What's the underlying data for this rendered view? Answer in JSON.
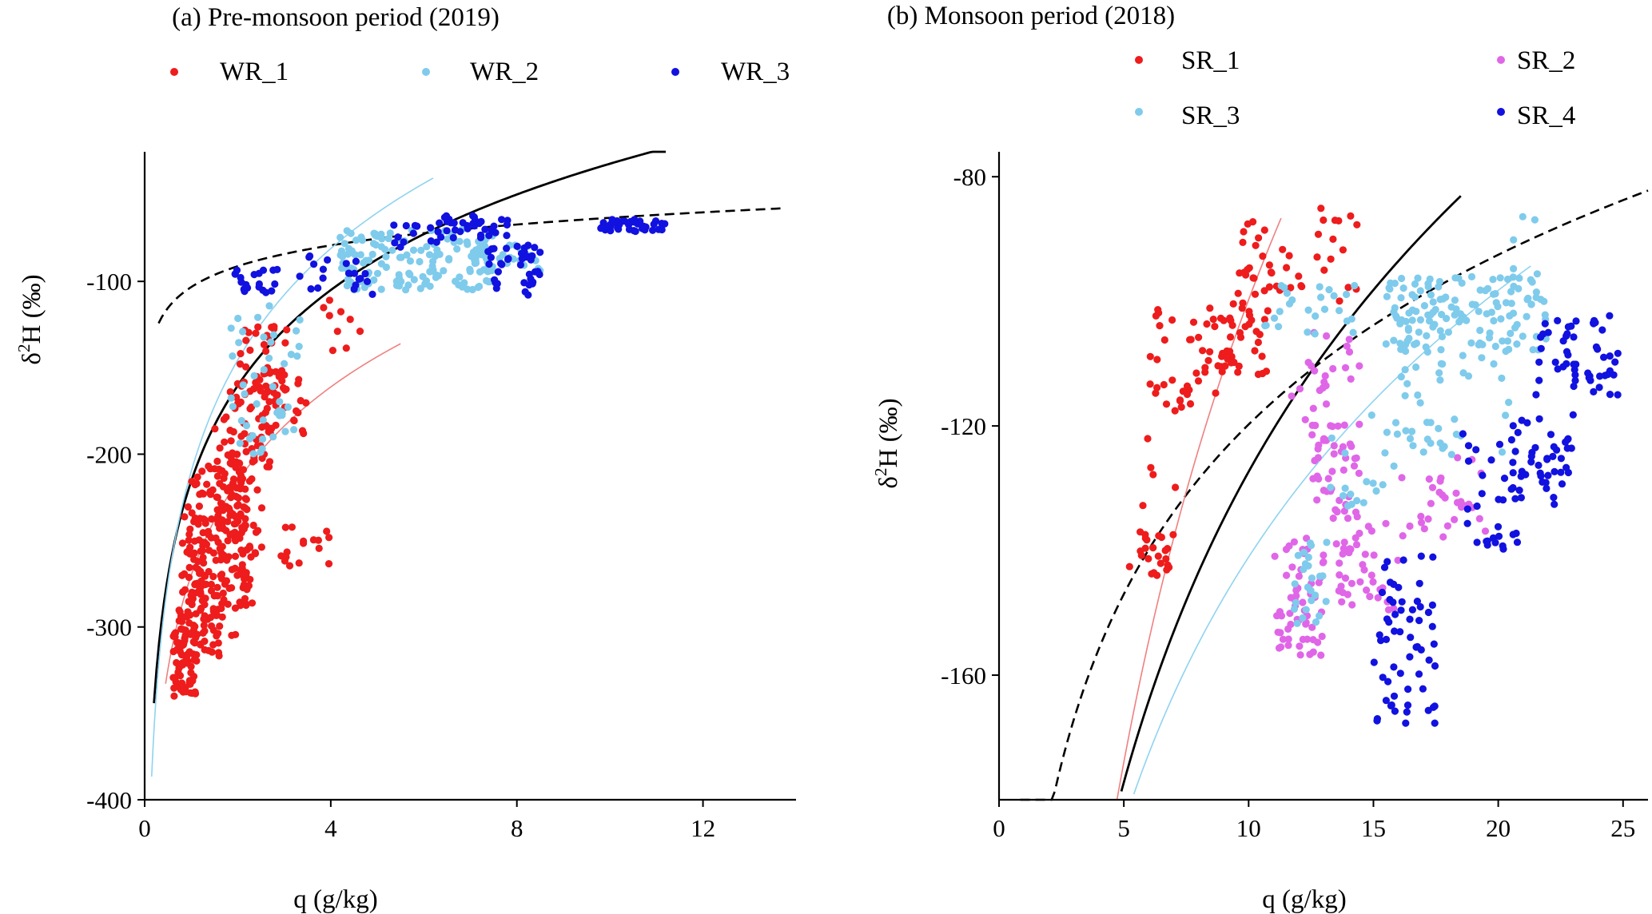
{
  "chart_data": [
    {
      "type": "scatter",
      "title": "(a) Pre-monsoon period (2019)",
      "xlabel": "q (g/kg)",
      "ylabel_prefix": "δ",
      "ylabel_sup": "2",
      "ylabel_suffix": "H (‰)",
      "xlim": [
        0,
        14
      ],
      "ylim": [
        -400,
        -25
      ],
      "xticks": [
        0,
        4,
        8,
        12
      ],
      "xtick_labels": [
        "0",
        "4",
        "8",
        "12"
      ],
      "yticks": [
        -400,
        -300,
        -200,
        -100
      ],
      "ytick_labels": [
        "-400",
        "-300",
        "-200",
        "-100"
      ],
      "grid": false,
      "legend": "top",
      "series": [
        {
          "name": "WR_1",
          "color": "#ee1c1c",
          "clusters": [
            {
              "x": [
                0.6,
                1.1
              ],
              "y": [
                -340,
                -290
              ],
              "n": 70,
              "seed": 11
            },
            {
              "x": [
                0.8,
                1.7
              ],
              "y": [
                -320,
                -230
              ],
              "n": 110,
              "seed": 12
            },
            {
              "x": [
                1.0,
                2.2
              ],
              "y": [
                -290,
                -205
              ],
              "n": 110,
              "seed": 13
            },
            {
              "x": [
                1.4,
                2.6
              ],
              "y": [
                -260,
                -185
              ],
              "n": 70,
              "seed": 14
            },
            {
              "x": [
                1.7,
                2.7
              ],
              "y": [
                -215,
                -150
              ],
              "n": 45,
              "seed": 15
            },
            {
              "x": [
                2.0,
                3.1
              ],
              "y": [
                -180,
                -125
              ],
              "n": 40,
              "seed": 16
            },
            {
              "x": [
                2.4,
                3.6
              ],
              "y": [
                -190,
                -145
              ],
              "n": 30,
              "seed": 17
            },
            {
              "x": [
                2.9,
                4.0
              ],
              "y": [
                -265,
                -240
              ],
              "n": 16,
              "seed": 18
            },
            {
              "x": [
                3.8,
                4.8
              ],
              "y": [
                -140,
                -110
              ],
              "n": 9,
              "seed": 19
            },
            {
              "x": [
                1.7,
                2.4
              ],
              "y": [
                -310,
                -255
              ],
              "n": 15,
              "seed": 20
            }
          ]
        },
        {
          "name": "WR_2",
          "color": "#7fcbec",
          "clusters": [
            {
              "x": [
                1.8,
                3.4
              ],
              "y": [
                -200,
                -110
              ],
              "n": 45,
              "seed": 21
            },
            {
              "x": [
                4.2,
                7.5
              ],
              "y": [
                -105,
                -70
              ],
              "n": 140,
              "seed": 22
            },
            {
              "x": [
                7.0,
                8.5
              ],
              "y": [
                -95,
                -78
              ],
              "n": 35,
              "seed": 23
            }
          ]
        },
        {
          "name": "WR_3",
          "color": "#1111e0",
          "clusters": [
            {
              "x": [
                1.9,
                2.9
              ],
              "y": [
                -107,
                -93
              ],
              "n": 20,
              "seed": 31
            },
            {
              "x": [
                3.3,
                5.0
              ],
              "y": [
                -108,
                -85
              ],
              "n": 20,
              "seed": 32
            },
            {
              "x": [
                5.0,
                6.5
              ],
              "y": [
                -82,
                -66
              ],
              "n": 12,
              "seed": 33
            },
            {
              "x": [
                6.3,
                7.8
              ],
              "y": [
                -75,
                -62
              ],
              "n": 35,
              "seed": 34
            },
            {
              "x": [
                7.3,
                8.5
              ],
              "y": [
                -108,
                -78
              ],
              "n": 40,
              "seed": 35
            },
            {
              "x": [
                9.8,
                11.4
              ],
              "y": [
                -71,
                -64
              ],
              "n": 40,
              "seed": 36
            }
          ]
        }
      ],
      "curves": [
        {
          "style": "dashed",
          "color": "#000000",
          "a": -103.29,
          "b": 17.41,
          "x": [
            0.3,
            13.7
          ]
        },
        {
          "style": "solid",
          "color": "#000000",
          "a": -215.67,
          "b": 79.81,
          "x": [
            0.2,
            11.2
          ]
        },
        {
          "style": "thin",
          "color": "#8fd3f0",
          "a": -210.03,
          "b": 93.07,
          "x": [
            0.15,
            6.2
          ]
        },
        {
          "style": "thin",
          "color": "#f08080",
          "a": -270.07,
          "b": 78.6,
          "x": [
            0.45,
            5.5
          ]
        }
      ]
    },
    {
      "type": "scatter",
      "title": "(b) Monsoon period (2018)",
      "xlabel": "q (g/kg)",
      "ylabel_prefix": "δ",
      "ylabel_sup": "2",
      "ylabel_suffix": "H (‰)",
      "xlim": [
        0,
        26
      ],
      "ylim": [
        -180,
        -76
      ],
      "xticks": [
        0,
        5,
        10,
        15,
        20,
        25
      ],
      "xtick_labels": [
        "0",
        "5",
        "10",
        "15",
        "20",
        "25"
      ],
      "yticks": [
        -160,
        -120,
        -80
      ],
      "ytick_labels": [
        "-160",
        "-120",
        "-80"
      ],
      "grid": false,
      "legend": "top",
      "series": [
        {
          "name": "SR_1",
          "color": "#ee1c1c",
          "clusters": [
            {
              "x": [
                5.2,
                7.0
              ],
              "y": [
                -144,
                -137
              ],
              "n": 25,
              "seed": 41
            },
            {
              "x": [
                6.0,
                8.8
              ],
              "y": [
                -118,
                -101
              ],
              "n": 40,
              "seed": 42
            },
            {
              "x": [
                8.8,
                10.8
              ],
              "y": [
                -112,
                -100
              ],
              "n": 40,
              "seed": 43
            },
            {
              "x": [
                9.5,
                11.0
              ],
              "y": [
                -99,
                -87
              ],
              "n": 22,
              "seed": 44
            },
            {
              "x": [
                10.5,
                14.5
              ],
              "y": [
                -100,
                -85
              ],
              "n": 25,
              "seed": 45
            },
            {
              "x": [
                5.7,
                7.2
              ],
              "y": [
                -133,
                -119
              ],
              "n": 5,
              "seed": 46
            }
          ]
        },
        {
          "name": "SR_2",
          "color": "#e066e8",
          "clusters": [
            {
              "x": [
                11.0,
                13.0
              ],
              "y": [
                -157,
                -138
              ],
              "n": 60,
              "seed": 51
            },
            {
              "x": [
                12.5,
                14.5
              ],
              "y": [
                -135,
                -122
              ],
              "n": 40,
              "seed": 52
            },
            {
              "x": [
                13.5,
                16.0
              ],
              "y": [
                -150,
                -135
              ],
              "n": 40,
              "seed": 53
            },
            {
              "x": [
                11.5,
                14.5
              ],
              "y": [
                -122,
                -105
              ],
              "n": 30,
              "seed": 54
            },
            {
              "x": [
                16.0,
                19.5
              ],
              "y": [
                -138,
                -125
              ],
              "n": 30,
              "seed": 55
            }
          ]
        },
        {
          "name": "SR_3",
          "color": "#7fcbec",
          "clusters": [
            {
              "x": [
                10.5,
                14.5
              ],
              "y": [
                -106,
                -97
              ],
              "n": 25,
              "seed": 61
            },
            {
              "x": [
                15.5,
                22.0
              ],
              "y": [
                -108,
                -96
              ],
              "n": 130,
              "seed": 62
            },
            {
              "x": [
                16.0,
                20.5
              ],
              "y": [
                -125,
                -108
              ],
              "n": 40,
              "seed": 63
            },
            {
              "x": [
                11.8,
                13.2
              ],
              "y": [
                -152,
                -138
              ],
              "n": 25,
              "seed": 64
            },
            {
              "x": [
                13.0,
                16.0
              ],
              "y": [
                -134,
                -118
              ],
              "n": 20,
              "seed": 65
            },
            {
              "x": [
                20.5,
                21.8
              ],
              "y": [
                -100,
                -86
              ],
              "n": 10,
              "seed": 66
            }
          ]
        },
        {
          "name": "SR_4",
          "color": "#1111e0",
          "clusters": [
            {
              "x": [
                15.0,
                17.5
              ],
              "y": [
                -168,
                -140
              ],
              "n": 60,
              "seed": 71
            },
            {
              "x": [
                18.5,
                20.8
              ],
              "y": [
                -140,
                -120
              ],
              "n": 30,
              "seed": 72
            },
            {
              "x": [
                20.5,
                23.0
              ],
              "y": [
                -133,
                -118
              ],
              "n": 45,
              "seed": 73
            },
            {
              "x": [
                21.5,
                24.8
              ],
              "y": [
                -115,
                -103
              ],
              "n": 45,
              "seed": 74
            },
            {
              "x": [
                23.8,
                24.8
              ],
              "y": [
                -113,
                -101
              ],
              "n": 8,
              "seed": 75
            }
          ]
        }
      ],
      "curves": [
        {
          "style": "dashed",
          "color": "#000000",
          "a": -210.23,
          "b": 39.29,
          "x": [
            0.85,
            26.0
          ]
        },
        {
          "style": "solid",
          "color": "#000000",
          "a": -292.99,
          "b": 71.94,
          "x": [
            4.9,
            18.5
          ]
        },
        {
          "style": "thin",
          "color": "#8fd3f0",
          "a": -283.25,
          "b": 61.76,
          "x": [
            5.4,
            21.3
          ]
        },
        {
          "style": "thin",
          "color": "#f08080",
          "a": -346.33,
          "b": 107.09,
          "x": [
            4.2,
            11.3
          ]
        }
      ]
    }
  ]
}
